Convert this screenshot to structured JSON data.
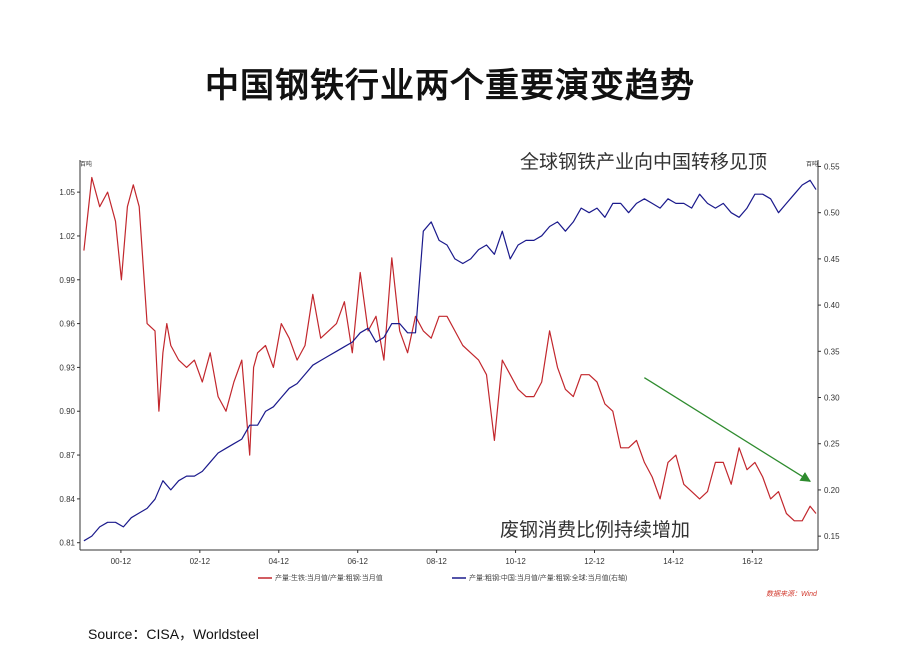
{
  "title": "中国钢铁行业两个重要演变趋势",
  "source": "Source：CISA，Worldsteel",
  "annotations": {
    "top_right": "全球钢铁产业向中国转移见顶",
    "bottom_right": "废钢消费比例持续增加"
  },
  "colors": {
    "series_left": "#c2272d",
    "series_right": "#1b1a8c",
    "arrow": "#2e8b2e",
    "axis": "#333333"
  },
  "chart_data": {
    "type": "line",
    "left_axis_unit": "百吨",
    "right_axis_unit": "百吨",
    "watermark": "数据来源：Wind",
    "x_tick_labels": [
      "00-12",
      "02-12",
      "04-12",
      "06-12",
      "08-12",
      "10-12",
      "12-12",
      "14-12",
      "16-12"
    ],
    "x_range": [
      1999.5,
      2018.2
    ],
    "ylim_left": [
      0.805,
      1.072
    ],
    "ylim_right": [
      0.135,
      0.557
    ],
    "y_ticks_left": [
      "1.05",
      "1.02",
      "0.99",
      "0.96",
      "0.93",
      "0.90",
      "0.87",
      "0.84",
      "0.81"
    ],
    "y_ticks_right": [
      "0.55",
      "0.50",
      "0.45",
      "0.40",
      "0.35",
      "0.30",
      "0.25",
      "0.20",
      "0.15"
    ],
    "grid": false,
    "series": [
      {
        "name": "产量:生铁:当月值/产量:粗钢:当月值",
        "axis": "left",
        "x": [
          1999.6,
          1999.8,
          2000.0,
          2000.2,
          2000.4,
          2000.55,
          2000.7,
          2000.85,
          2001.0,
          2001.2,
          2001.4,
          2001.5,
          2001.6,
          2001.7,
          2001.8,
          2002.0,
          2002.2,
          2002.4,
          2002.6,
          2002.8,
          2003.0,
          2003.2,
          2003.4,
          2003.6,
          2003.8,
          2003.9,
          2004.0,
          2004.2,
          2004.4,
          2004.6,
          2004.8,
          2005.0,
          2005.2,
          2005.4,
          2005.6,
          2005.8,
          2006.0,
          2006.2,
          2006.4,
          2006.6,
          2006.8,
          2007.0,
          2007.2,
          2007.4,
          2007.6,
          2007.8,
          2008.0,
          2008.2,
          2008.4,
          2008.6,
          2008.8,
          2009.0,
          2009.2,
          2009.4,
          2009.6,
          2009.8,
          2010.0,
          2010.2,
          2010.4,
          2010.6,
          2010.8,
          2011.0,
          2011.2,
          2011.4,
          2011.6,
          2011.8,
          2012.0,
          2012.2,
          2012.4,
          2012.6,
          2012.8,
          2013.0,
          2013.2,
          2013.4,
          2013.6,
          2013.8,
          2014.0,
          2014.2,
          2014.4,
          2014.6,
          2014.8,
          2015.0,
          2015.2,
          2015.4,
          2015.6,
          2015.8,
          2016.0,
          2016.2,
          2016.4,
          2016.6,
          2016.8,
          2017.0,
          2017.2,
          2017.4,
          2017.6,
          2017.8,
          2018.0,
          2018.15
        ],
        "values": [
          1.01,
          1.06,
          1.04,
          1.05,
          1.03,
          0.99,
          1.04,
          1.055,
          1.04,
          0.96,
          0.955,
          0.9,
          0.94,
          0.96,
          0.945,
          0.935,
          0.93,
          0.935,
          0.92,
          0.94,
          0.91,
          0.9,
          0.92,
          0.935,
          0.87,
          0.93,
          0.94,
          0.945,
          0.93,
          0.96,
          0.95,
          0.935,
          0.945,
          0.98,
          0.95,
          0.955,
          0.96,
          0.975,
          0.94,
          0.995,
          0.955,
          0.965,
          0.935,
          1.005,
          0.955,
          0.94,
          0.965,
          0.955,
          0.95,
          0.965,
          0.965,
          0.955,
          0.945,
          0.94,
          0.935,
          0.925,
          0.88,
          0.935,
          0.925,
          0.915,
          0.91,
          0.91,
          0.92,
          0.955,
          0.93,
          0.915,
          0.91,
          0.925,
          0.925,
          0.92,
          0.905,
          0.9,
          0.875,
          0.875,
          0.88,
          0.865,
          0.855,
          0.84,
          0.865,
          0.87,
          0.85,
          0.845,
          0.84,
          0.845,
          0.865,
          0.865,
          0.85,
          0.875,
          0.86,
          0.865,
          0.855,
          0.84,
          0.845,
          0.83,
          0.825,
          0.825,
          0.835,
          0.83
        ]
      },
      {
        "name": "产量:粗钢:中国:当月值/产量:粗钢:全球:当月值(右轴)",
        "axis": "right",
        "x": [
          1999.6,
          1999.8,
          2000.0,
          2000.2,
          2000.4,
          2000.6,
          2000.8,
          2001.0,
          2001.2,
          2001.4,
          2001.6,
          2001.8,
          2002.0,
          2002.2,
          2002.4,
          2002.6,
          2002.8,
          2003.0,
          2003.2,
          2003.4,
          2003.6,
          2003.8,
          2004.0,
          2004.2,
          2004.4,
          2004.6,
          2004.8,
          2005.0,
          2005.2,
          2005.4,
          2005.6,
          2005.8,
          2006.0,
          2006.2,
          2006.4,
          2006.6,
          2006.8,
          2007.0,
          2007.2,
          2007.4,
          2007.6,
          2007.8,
          2008.0,
          2008.2,
          2008.4,
          2008.6,
          2008.8,
          2009.0,
          2009.2,
          2009.4,
          2009.6,
          2009.8,
          2010.0,
          2010.2,
          2010.4,
          2010.6,
          2010.8,
          2011.0,
          2011.2,
          2011.4,
          2011.6,
          2011.8,
          2012.0,
          2012.2,
          2012.4,
          2012.6,
          2012.8,
          2013.0,
          2013.2,
          2013.4,
          2013.6,
          2013.8,
          2014.0,
          2014.2,
          2014.4,
          2014.6,
          2014.8,
          2015.0,
          2015.2,
          2015.4,
          2015.6,
          2015.8,
          2016.0,
          2016.2,
          2016.4,
          2016.6,
          2016.8,
          2017.0,
          2017.2,
          2017.4,
          2017.6,
          2017.8,
          2018.0,
          2018.15
        ],
        "values": [
          0.145,
          0.15,
          0.16,
          0.165,
          0.165,
          0.16,
          0.17,
          0.175,
          0.18,
          0.19,
          0.21,
          0.2,
          0.21,
          0.215,
          0.215,
          0.22,
          0.23,
          0.24,
          0.245,
          0.25,
          0.255,
          0.27,
          0.27,
          0.285,
          0.29,
          0.3,
          0.31,
          0.315,
          0.325,
          0.335,
          0.34,
          0.345,
          0.35,
          0.355,
          0.36,
          0.37,
          0.375,
          0.36,
          0.365,
          0.38,
          0.38,
          0.37,
          0.37,
          0.48,
          0.49,
          0.47,
          0.465,
          0.45,
          0.445,
          0.45,
          0.46,
          0.465,
          0.455,
          0.48,
          0.45,
          0.465,
          0.47,
          0.47,
          0.475,
          0.485,
          0.49,
          0.48,
          0.49,
          0.505,
          0.5,
          0.505,
          0.495,
          0.51,
          0.51,
          0.5,
          0.51,
          0.515,
          0.51,
          0.505,
          0.515,
          0.51,
          0.51,
          0.505,
          0.52,
          0.51,
          0.505,
          0.51,
          0.5,
          0.495,
          0.505,
          0.52,
          0.52,
          0.515,
          0.5,
          0.51,
          0.52,
          0.53,
          0.535,
          0.525
        ]
      }
    ],
    "trend_arrow": {
      "from": [
        2013.8,
        0.923
      ],
      "to": [
        2018.0,
        0.852
      ]
    }
  }
}
